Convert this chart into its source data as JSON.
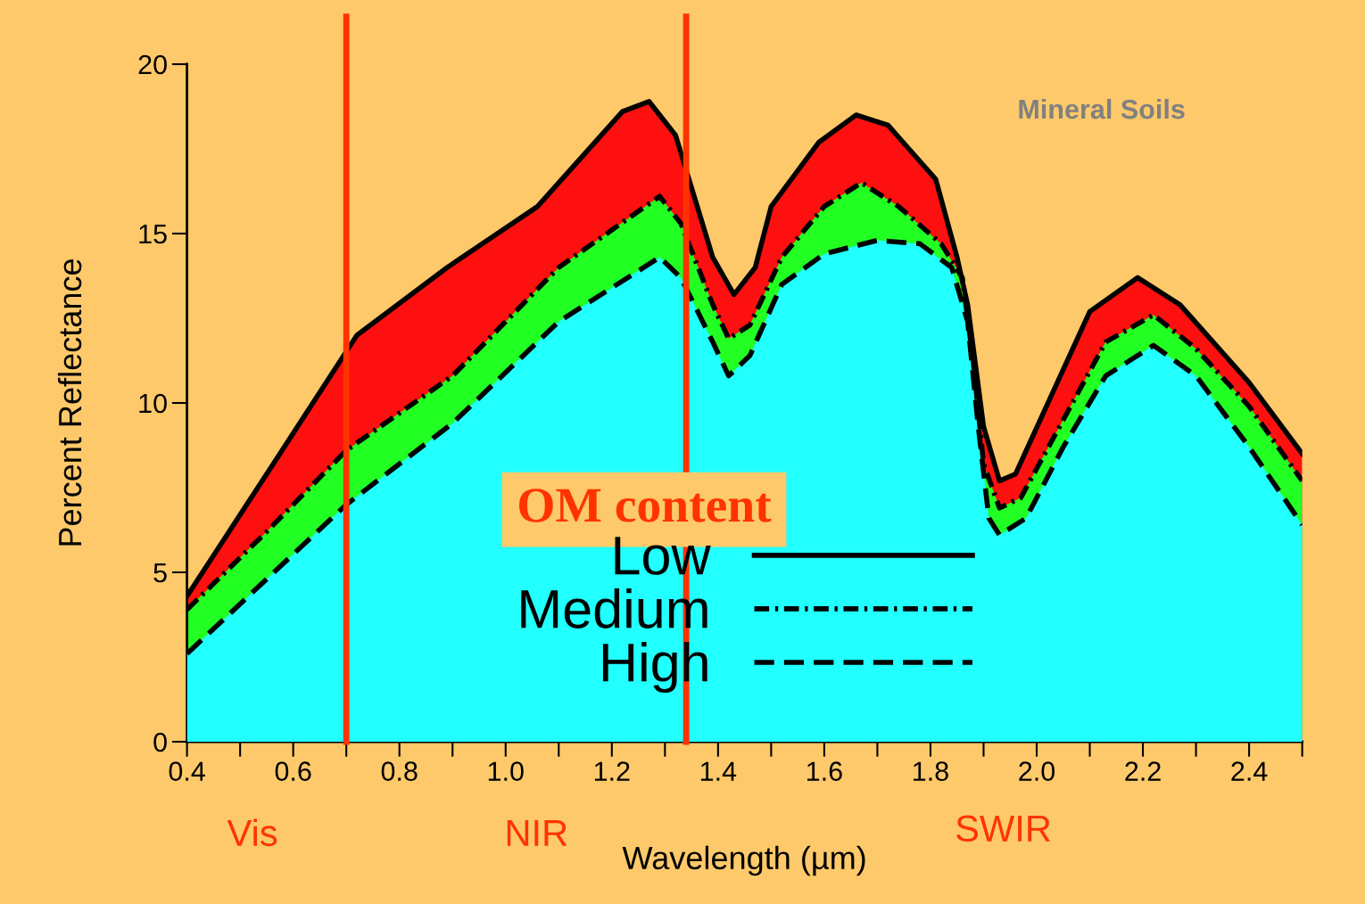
{
  "chart_data": {
    "type": "area",
    "xlabel": "Wavelength (µm)",
    "ylabel": "Percent Reflectance",
    "legend_title": "OM content",
    "annotations": [
      "Mineral Soils",
      "Vis",
      "NIR",
      "SWIR"
    ],
    "xlim": [
      0.4,
      2.5
    ],
    "ylim": [
      0,
      20
    ],
    "xticks": [
      0.4,
      0.6,
      0.8,
      {
        "value": 1.0,
        "label": "1.0"
      },
      1.2,
      1.4,
      1.6,
      1.8,
      {
        "value": 2.0,
        "label": "2.0"
      },
      2.2,
      2.4
    ],
    "yticks": [
      0,
      5,
      10,
      15,
      20
    ],
    "grid": false,
    "legend": "bottom",
    "ref_lines": [
      {
        "axis": "x",
        "value": 0.7,
        "color": "#ff3300"
      },
      {
        "axis": "x",
        "value": 1.34,
        "color": "#ff3300"
      }
    ],
    "series": [
      {
        "name": "Low",
        "color": "#ff1010",
        "line_style": "solid",
        "x": [
          0.4,
          0.55,
          0.72,
          0.89,
          1.06,
          1.22,
          1.27,
          1.32,
          1.39,
          1.43,
          1.47,
          1.5,
          1.59,
          1.66,
          1.72,
          1.81,
          1.85,
          1.87,
          1.9,
          1.93,
          1.96,
          2.03,
          2.1,
          2.19,
          2.27,
          2.4,
          2.5
        ],
        "values": [
          4.3,
          7.9,
          12.0,
          14.0,
          15.8,
          18.6,
          18.9,
          17.9,
          14.3,
          13.2,
          14.0,
          15.8,
          17.7,
          18.5,
          18.2,
          16.6,
          14.3,
          12.9,
          9.3,
          7.7,
          7.9,
          10.3,
          12.7,
          13.7,
          12.9,
          10.6,
          8.5
        ]
      },
      {
        "name": "Medium",
        "color": "#22ff22",
        "line_style": "dashdot",
        "x": [
          0.4,
          0.55,
          0.7,
          0.9,
          1.1,
          1.29,
          1.33,
          1.39,
          1.42,
          1.46,
          1.52,
          1.6,
          1.67,
          1.74,
          1.82,
          1.86,
          1.88,
          1.9,
          1.93,
          1.97,
          2.05,
          2.13,
          2.22,
          2.3,
          2.4,
          2.5
        ],
        "values": [
          3.9,
          6.2,
          8.6,
          10.8,
          14.0,
          16.1,
          15.3,
          12.9,
          11.9,
          12.3,
          14.3,
          15.8,
          16.5,
          15.8,
          14.7,
          13.7,
          11.3,
          8.2,
          6.9,
          7.2,
          9.5,
          11.8,
          12.6,
          11.6,
          9.9,
          7.7
        ]
      },
      {
        "name": "High",
        "color": "#22ffff",
        "line_style": "dashed",
        "x": [
          0.4,
          0.55,
          0.7,
          0.9,
          1.1,
          1.29,
          1.33,
          1.39,
          1.42,
          1.46,
          1.52,
          1.6,
          1.7,
          1.78,
          1.84,
          1.87,
          1.89,
          1.91,
          1.93,
          1.98,
          2.05,
          2.13,
          2.22,
          2.3,
          2.4,
          2.5
        ],
        "values": [
          2.6,
          4.8,
          7.0,
          9.4,
          12.4,
          14.3,
          13.7,
          11.8,
          10.8,
          11.4,
          13.5,
          14.4,
          14.8,
          14.7,
          14.0,
          12.4,
          9.3,
          6.6,
          6.1,
          6.6,
          8.7,
          10.8,
          11.7,
          10.8,
          8.7,
          6.4
        ]
      }
    ]
  }
}
